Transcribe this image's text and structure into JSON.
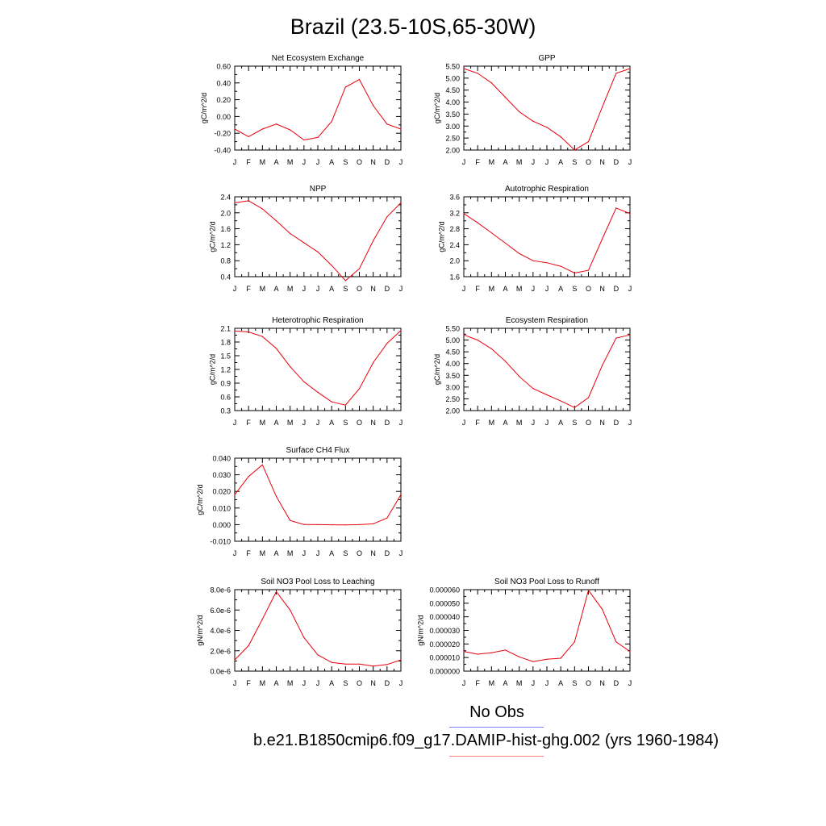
{
  "title": "Brazil (23.5-10S,65-30W)",
  "legend": {
    "obs_label": "No Obs",
    "case_label": "b.e21.B1850cmip6.f09_g17.DAMIP-hist-ghg.002 (yrs 1960-1984)",
    "obs_color": "#7f7fff",
    "case_color": "#ff7f7f"
  },
  "line_color": "#e8000b",
  "chart_data": [
    {
      "type": "line",
      "title": "Net Ecosystem Exchange",
      "ylabel": "gC/m^2/d",
      "xlabel": "",
      "categories": [
        "J",
        "F",
        "M",
        "A",
        "M",
        "J",
        "J",
        "A",
        "S",
        "O",
        "N",
        "D",
        "J"
      ],
      "ylim": [
        -0.4,
        0.6
      ],
      "yticks": [
        "-0.40",
        "-0.20",
        "0.00",
        "0.20",
        "0.40",
        "0.60"
      ],
      "series": [
        {
          "values": [
            -0.15,
            -0.24,
            -0.15,
            -0.09,
            -0.16,
            -0.28,
            -0.25,
            -0.06,
            0.35,
            0.44,
            0.13,
            -0.09,
            -0.15
          ]
        }
      ]
    },
    {
      "type": "line",
      "title": "GPP",
      "ylabel": "gC/m^2/d",
      "xlabel": "",
      "categories": [
        "J",
        "F",
        "M",
        "A",
        "M",
        "J",
        "J",
        "A",
        "S",
        "O",
        "N",
        "D",
        "J"
      ],
      "ylim": [
        2.0,
        5.5
      ],
      "yticks": [
        "2.00",
        "2.50",
        "3.00",
        "3.50",
        "4.00",
        "4.50",
        "5.00",
        "5.50"
      ],
      "series": [
        {
          "values": [
            5.4,
            5.2,
            4.8,
            4.2,
            3.6,
            3.2,
            2.95,
            2.55,
            2.0,
            2.35,
            3.8,
            5.2,
            5.4
          ]
        }
      ]
    },
    {
      "type": "line",
      "title": "NPP",
      "ylabel": "gC/m^2/d",
      "xlabel": "",
      "categories": [
        "J",
        "F",
        "M",
        "A",
        "M",
        "J",
        "J",
        "A",
        "S",
        "O",
        "N",
        "D",
        "J"
      ],
      "ylim": [
        0.4,
        2.4
      ],
      "yticks": [
        "0.4",
        "0.8",
        "1.2",
        "1.6",
        "2.0",
        "2.4"
      ],
      "series": [
        {
          "values": [
            2.25,
            2.3,
            2.1,
            1.8,
            1.48,
            1.25,
            1.02,
            0.68,
            0.3,
            0.6,
            1.3,
            1.9,
            2.25
          ]
        }
      ]
    },
    {
      "type": "line",
      "title": "Autotrophic Respiration",
      "ylabel": "gC/m^2/d",
      "xlabel": "",
      "categories": [
        "J",
        "F",
        "M",
        "A",
        "M",
        "J",
        "J",
        "A",
        "S",
        "O",
        "N",
        "D",
        "J"
      ],
      "ylim": [
        1.6,
        3.6
      ],
      "yticks": [
        "1.6",
        "2.0",
        "2.4",
        "2.8",
        "3.2",
        "3.6"
      ],
      "series": [
        {
          "values": [
            3.18,
            2.95,
            2.7,
            2.44,
            2.18,
            2.0,
            1.95,
            1.86,
            1.69,
            1.76,
            2.55,
            3.32,
            3.18
          ]
        }
      ]
    },
    {
      "type": "line",
      "title": "Heterotrophic Respiration",
      "ylabel": "gC/m^2/d",
      "xlabel": "",
      "categories": [
        "J",
        "F",
        "M",
        "A",
        "M",
        "J",
        "J",
        "A",
        "S",
        "O",
        "N",
        "D",
        "J"
      ],
      "ylim": [
        0.3,
        2.1
      ],
      "yticks": [
        "0.3",
        "0.6",
        "0.9",
        "1.2",
        "1.5",
        "1.8",
        "2.1"
      ],
      "series": [
        {
          "values": [
            2.04,
            2.02,
            1.92,
            1.66,
            1.26,
            0.93,
            0.7,
            0.49,
            0.42,
            0.78,
            1.35,
            1.77,
            2.05
          ]
        }
      ]
    },
    {
      "type": "line",
      "title": "Ecosystem Respiration",
      "ylabel": "gC/m^2/d",
      "xlabel": "",
      "categories": [
        "J",
        "F",
        "M",
        "A",
        "M",
        "J",
        "J",
        "A",
        "S",
        "O",
        "N",
        "D",
        "J"
      ],
      "ylim": [
        2.0,
        5.5
      ],
      "yticks": [
        "2.00",
        "2.50",
        "3.00",
        "3.50",
        "4.00",
        "4.50",
        "5.00",
        "5.50"
      ],
      "series": [
        {
          "values": [
            5.22,
            5.0,
            4.63,
            4.1,
            3.45,
            2.94,
            2.67,
            2.41,
            2.13,
            2.55,
            3.93,
            5.08,
            5.22
          ]
        }
      ]
    },
    {
      "type": "line",
      "title": "Surface CH4 Flux",
      "ylabel": "gC/m^2/d",
      "xlabel": "",
      "categories": [
        "J",
        "F",
        "M",
        "A",
        "M",
        "J",
        "J",
        "A",
        "S",
        "O",
        "N",
        "D",
        "J"
      ],
      "ylim": [
        -0.01,
        0.04
      ],
      "yticks": [
        "-0.010",
        "0.000",
        "0.010",
        "0.020",
        "0.030",
        "0.040"
      ],
      "series": [
        {
          "values": [
            0.018,
            0.029,
            0.036,
            0.017,
            0.0025,
            0.0001,
            0.0,
            -0.0001,
            -0.0002,
            0.0,
            0.0005,
            0.004,
            0.018
          ]
        }
      ]
    },
    {
      "type": "line",
      "title": "Soil NO3 Pool Loss to Leaching",
      "ylabel": "gN/m^2/d",
      "xlabel": "",
      "categories": [
        "J",
        "F",
        "M",
        "A",
        "M",
        "J",
        "J",
        "A",
        "S",
        "O",
        "N",
        "D",
        "J"
      ],
      "ylim": [
        0.0,
        8e-06
      ],
      "yticks": [
        "0.0e-6",
        "2.0e-6",
        "4.0e-6",
        "6.0e-6",
        "8.0e-6"
      ],
      "series": [
        {
          "values": [
            1.1e-06,
            2.5e-06,
            5.1e-06,
            7.8e-06,
            6e-06,
            3.3e-06,
            1.6e-06,
            8.5e-07,
            7e-07,
            7e-07,
            5e-07,
            6.5e-07,
            1.1e-06
          ]
        }
      ]
    },
    {
      "type": "line",
      "title": "Soil NO3 Pool Loss to Runoff",
      "ylabel": "gN/m^2/d",
      "xlabel": "",
      "categories": [
        "J",
        "F",
        "M",
        "A",
        "M",
        "J",
        "J",
        "A",
        "S",
        "O",
        "N",
        "D",
        "J"
      ],
      "ylim": [
        0.0,
        6e-05
      ],
      "yticks": [
        "0.000000",
        "0.000010",
        "0.000020",
        "0.000030",
        "0.000040",
        "0.000050",
        "0.000060"
      ],
      "series": [
        {
          "values": [
            1.45e-05,
            1.25e-05,
            1.35e-05,
            1.55e-05,
            1.05e-05,
            7e-06,
            8.8e-06,
            9.5e-06,
            2.15e-05,
            5.95e-05,
            4.55e-05,
            2.15e-05,
            1.45e-05
          ]
        }
      ]
    }
  ]
}
